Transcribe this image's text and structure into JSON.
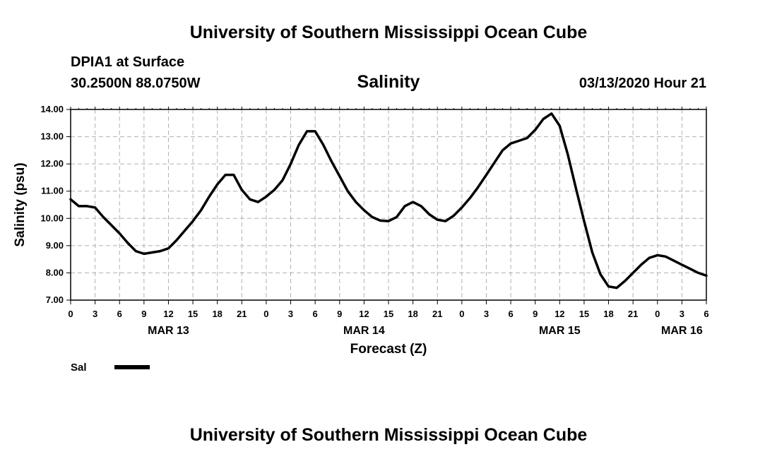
{
  "header": {
    "top_title": "University of Southern Mississippi Ocean Cube",
    "station": "DPIA1 at Surface",
    "coords": "30.2500N 88.0750W",
    "variable": "Salinity",
    "datetime": "03/13/2020 Hour 21"
  },
  "footer": {
    "bottom_title": "University of Southern Mississippi Ocean Cube"
  },
  "legend": {
    "label": "Sal",
    "color": "#000000"
  },
  "chart_data": {
    "type": "line",
    "title": "Salinity",
    "xlabel": "Forecast (Z)",
    "ylabel": "Salinity (psu)",
    "ylim": [
      7.0,
      14.0
    ],
    "y_ticks": [
      "7.00",
      "8.00",
      "9.00",
      "10.00",
      "11.00",
      "12.00",
      "13.00",
      "14.00"
    ],
    "x_range_hours": [
      0,
      78
    ],
    "x_tick_labels": [
      "0",
      "3",
      "6",
      "9",
      "12",
      "15",
      "18",
      "21",
      "0",
      "3",
      "6",
      "9",
      "12",
      "15",
      "18",
      "21",
      "0",
      "3",
      "6",
      "9",
      "12",
      "15",
      "18",
      "21",
      "0",
      "3",
      "6"
    ],
    "day_labels": [
      {
        "label": "MAR 13",
        "hour": 12
      },
      {
        "label": "MAR 14",
        "hour": 36
      },
      {
        "label": "MAR 15",
        "hour": 60
      },
      {
        "label": "MAR 16",
        "hour": 75
      }
    ],
    "grid": true,
    "series": [
      {
        "name": "Sal",
        "x": [
          0,
          1,
          2,
          3,
          4,
          5,
          6,
          7,
          8,
          9,
          10,
          11,
          12,
          13,
          14,
          15,
          16,
          17,
          18,
          19,
          20,
          21,
          22,
          23,
          24,
          25,
          26,
          27,
          28,
          29,
          30,
          31,
          32,
          33,
          34,
          35,
          36,
          37,
          38,
          39,
          40,
          41,
          42,
          43,
          44,
          45,
          46,
          47,
          48,
          49,
          50,
          51,
          52,
          53,
          54,
          55,
          56,
          57,
          58,
          59,
          60,
          61,
          62,
          63,
          64,
          65,
          66,
          67,
          68,
          69,
          70,
          71,
          72,
          73,
          74,
          75,
          76,
          77,
          78
        ],
        "values": [
          10.7,
          10.45,
          10.45,
          10.4,
          10.05,
          9.75,
          9.45,
          9.1,
          8.8,
          8.7,
          8.75,
          8.8,
          8.9,
          9.2,
          9.55,
          9.9,
          10.3,
          10.8,
          11.25,
          11.6,
          11.6,
          11.05,
          10.7,
          10.6,
          10.8,
          11.05,
          11.4,
          12.0,
          12.7,
          13.2,
          13.2,
          12.7,
          12.1,
          11.55,
          11.0,
          10.6,
          10.3,
          10.05,
          9.92,
          9.9,
          10.05,
          10.45,
          10.6,
          10.45,
          10.15,
          9.95,
          9.9,
          10.1,
          10.4,
          10.75,
          11.15,
          11.6,
          12.05,
          12.5,
          12.75,
          12.85,
          12.95,
          13.25,
          13.65,
          13.85,
          13.4,
          12.35,
          11.1,
          9.9,
          8.75,
          7.95,
          7.5,
          7.45,
          7.7,
          8.0,
          8.3,
          8.55,
          8.65,
          8.6,
          8.45,
          8.3,
          8.15,
          8.0,
          7.9
        ]
      }
    ]
  }
}
